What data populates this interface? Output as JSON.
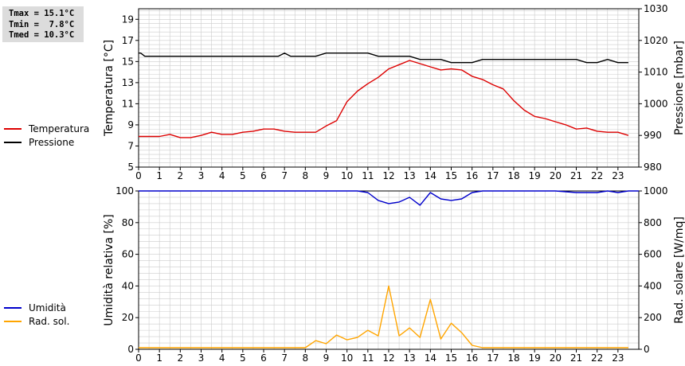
{
  "stats": {
    "tmax": "Tmax = 15.1°C",
    "tmin": "Tmin =  7.8°C",
    "tmed": "Tmed = 10.3°C"
  },
  "colors": {
    "temperatura": "#dd0000",
    "pressione": "#000000",
    "umidita": "#0000cc",
    "rad_sol": "#ffa500",
    "grid": "#cccccc"
  },
  "chart_data": [
    {
      "type": "line",
      "legend_placement": "left",
      "grid": true,
      "x_ticks": [
        0,
        1,
        2,
        3,
        4,
        5,
        6,
        7,
        8,
        9,
        10,
        11,
        12,
        13,
        14,
        15,
        16,
        17,
        18,
        19,
        20,
        21,
        22,
        23
      ],
      "xlim": [
        0,
        24
      ],
      "y_left": {
        "label": "Temperatura [°C]",
        "lim": [
          5,
          20
        ],
        "ticks": [
          5,
          7,
          9,
          11,
          13,
          15,
          17,
          19
        ]
      },
      "y_right": {
        "label": "Pressione [mbar]",
        "lim": [
          980,
          1030
        ],
        "ticks": [
          980,
          990,
          1000,
          1010,
          1020,
          1030
        ]
      },
      "series": [
        {
          "name": "Temperatura",
          "axis": "left",
          "x": [
            0,
            0.5,
            1,
            1.5,
            2,
            2.5,
            3,
            3.5,
            4,
            4.5,
            5,
            5.5,
            6,
            6.5,
            7,
            7.5,
            8,
            8.5,
            9,
            9.5,
            10,
            10.5,
            11,
            11.5,
            12,
            12.5,
            13,
            13.5,
            14,
            14.5,
            15,
            15.5,
            16,
            16.5,
            17,
            17.5,
            18,
            18.5,
            19,
            19.5,
            20,
            20.5,
            21,
            21.5,
            22,
            22.5,
            23,
            23.5
          ],
          "y": [
            7.9,
            7.9,
            7.9,
            8.1,
            7.8,
            7.8,
            8.0,
            8.3,
            8.1,
            8.1,
            8.3,
            8.4,
            8.6,
            8.6,
            8.4,
            8.3,
            8.3,
            8.3,
            8.9,
            9.4,
            11.2,
            12.2,
            12.9,
            13.5,
            14.3,
            14.7,
            15.1,
            14.8,
            14.5,
            14.2,
            14.3,
            14.2,
            13.6,
            13.3,
            12.8,
            12.4,
            11.3,
            10.4,
            9.8,
            9.6,
            9.3,
            9.0,
            8.6,
            8.7,
            8.4,
            8.3,
            8.3,
            8.0
          ]
        },
        {
          "name": "Pressione",
          "axis": "right",
          "x": [
            0,
            0.1,
            0.3,
            1,
            2,
            3,
            4,
            5,
            6,
            6.7,
            7,
            7.3,
            8,
            8.5,
            9,
            10,
            10.5,
            11,
            11.5,
            12,
            13,
            13.5,
            14,
            14.5,
            15,
            15.5,
            16,
            16.5,
            17,
            18,
            19,
            20,
            21,
            21.5,
            22,
            22.5,
            23,
            23.5
          ],
          "y": [
            1016,
            1016,
            1015,
            1015,
            1015,
            1015,
            1015,
            1015,
            1015,
            1015,
            1016,
            1015,
            1015,
            1015,
            1016,
            1016,
            1016,
            1016,
            1015,
            1015,
            1015,
            1014,
            1014,
            1014,
            1013,
            1013,
            1013,
            1014,
            1014,
            1014,
            1014,
            1014,
            1014,
            1013,
            1013,
            1014,
            1013,
            1013
          ]
        }
      ]
    },
    {
      "type": "line",
      "legend_placement": "left",
      "grid": true,
      "x_ticks": [
        0,
        1,
        2,
        3,
        4,
        5,
        6,
        7,
        8,
        9,
        10,
        11,
        12,
        13,
        14,
        15,
        16,
        17,
        18,
        19,
        20,
        21,
        22,
        23
      ],
      "xlim": [
        0,
        24
      ],
      "y_left": {
        "label": "Umidità relativa [%]",
        "lim": [
          0,
          100
        ],
        "ticks": [
          0,
          20,
          40,
          60,
          80,
          100
        ]
      },
      "y_right": {
        "label": "Rad. solare [W/mq]",
        "lim": [
          0,
          1000
        ],
        "ticks": [
          0,
          200,
          400,
          600,
          800,
          1000
        ]
      },
      "series": [
        {
          "name": "Umidità",
          "axis": "left",
          "x": [
            0,
            10.5,
            11,
            11.5,
            12,
            12.5,
            13,
            13.5,
            14,
            14.5,
            15,
            15.5,
            16,
            16.5,
            17,
            20,
            21,
            22,
            22.5,
            23,
            23.5,
            24
          ],
          "y": [
            100,
            100,
            99,
            94,
            92,
            93,
            96,
            91,
            99,
            95,
            94,
            95,
            99,
            100,
            100,
            100,
            99,
            99,
            100,
            99,
            100,
            100
          ]
        },
        {
          "name": "Rad. sol.",
          "axis": "right",
          "x": [
            0,
            1,
            2,
            3,
            4,
            5,
            6,
            7,
            8,
            8.5,
            9,
            9.5,
            10,
            10.5,
            11,
            11.5,
            12,
            12.5,
            13,
            13.5,
            14,
            14.5,
            15,
            15.5,
            16,
            16.5,
            17,
            18,
            19,
            20,
            21,
            22,
            23,
            23.5
          ],
          "y": [
            10,
            10,
            10,
            10,
            10,
            10,
            10,
            10,
            10,
            55,
            35,
            90,
            60,
            75,
            120,
            85,
            400,
            85,
            135,
            75,
            315,
            65,
            165,
            105,
            25,
            10,
            10,
            10,
            10,
            10,
            10,
            10,
            10,
            10
          ]
        }
      ]
    }
  ]
}
